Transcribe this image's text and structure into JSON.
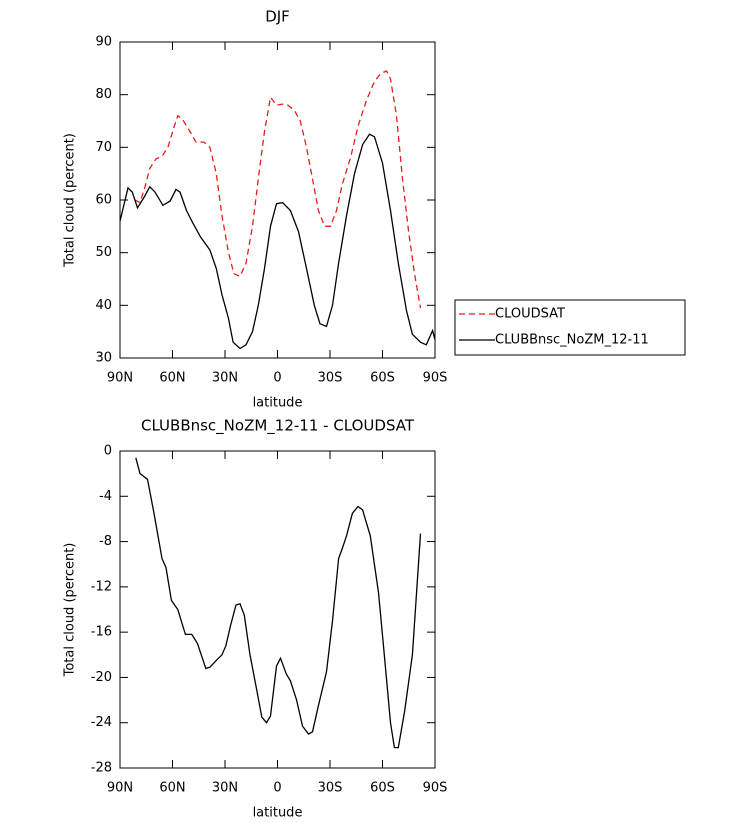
{
  "chart_data": [
    {
      "type": "line",
      "title": "DJF",
      "xlabel": "latitude",
      "ylabel": "Total cloud (percent)",
      "xlim": [
        90,
        -90
      ],
      "xticks": [
        {
          "value": 90,
          "label": "90N"
        },
        {
          "value": 60,
          "label": "60N"
        },
        {
          "value": 30,
          "label": "30N"
        },
        {
          "value": 0,
          "label": "0"
        },
        {
          "value": -30,
          "label": "30S"
        },
        {
          "value": -60,
          "label": "60S"
        },
        {
          "value": -90,
          "label": "90S"
        }
      ],
      "ylim": [
        30,
        90
      ],
      "yticks": [
        30,
        40,
        50,
        60,
        70,
        80,
        90
      ],
      "legend": "right",
      "series": [
        {
          "name": "CLOUDSAT",
          "color": "#e0201b",
          "dash": "dashed",
          "x": [
            81.4,
            78.6,
            75.7,
            73,
            69.4,
            66,
            62.6,
            59,
            57,
            54.6,
            50,
            46.6,
            42,
            38.6,
            35,
            31.7,
            28,
            24.9,
            21.4,
            18,
            14.3,
            11,
            7.4,
            4,
            0.6,
            -2.9,
            -6,
            -9.7,
            -13,
            -16.6,
            -20,
            -23.4,
            -26.9,
            -30.3,
            -33.7,
            -37,
            -41.7,
            -46,
            -50.9,
            -55.4,
            -58.9,
            -62.3,
            -64.6,
            -68,
            -71.4,
            -74.9,
            -78.3,
            -81.7
          ],
          "values": [
            60,
            59.5,
            62.5,
            66,
            67.8,
            68.3,
            70,
            74,
            76,
            75.5,
            73,
            71,
            71,
            70,
            65,
            57,
            50,
            46,
            45.5,
            48,
            55,
            64,
            73,
            79.5,
            78,
            78.2,
            78,
            77,
            75,
            70,
            64,
            58,
            55,
            55,
            58,
            63,
            68,
            74,
            79,
            82.5,
            84,
            84.5,
            83,
            76,
            64,
            54,
            46,
            39.5
          ]
        },
        {
          "name": "CLUBBnsc_NoZM_12-11",
          "color": "#000000",
          "dash": "solid",
          "x": [
            90,
            85.4,
            83,
            80,
            76.3,
            73,
            70,
            65.5,
            61.4,
            58,
            55.7,
            52,
            49,
            44,
            38.6,
            35,
            31.7,
            28,
            25.4,
            21.4,
            18,
            14.3,
            11,
            7.4,
            4,
            0.6,
            -2.9,
            -7.4,
            -12,
            -16.6,
            -21,
            -24.3,
            -28,
            -31.4,
            -34.9,
            -39.4,
            -44,
            -48.6,
            -52.6,
            -55.4,
            -60,
            -64.6,
            -69,
            -73.7,
            -77.1,
            -81.7,
            -85,
            -88.6,
            -90
          ],
          "values": [
            56,
            62.3,
            61.5,
            58.5,
            60.5,
            62.5,
            61.5,
            59,
            59.8,
            62,
            61.5,
            58,
            56,
            53,
            50.5,
            47,
            42,
            37.5,
            33,
            31.8,
            32.5,
            35,
            40,
            47,
            55,
            59.3,
            59.5,
            58,
            54,
            47,
            40,
            36.5,
            36,
            40,
            48,
            57,
            65,
            70.5,
            72.5,
            72,
            67,
            58,
            48,
            39,
            34.5,
            33,
            32.5,
            35.2,
            33.5
          ]
        }
      ]
    },
    {
      "type": "line",
      "title": "CLUBBnsc_NoZM_12-11 - CLOUDSAT",
      "xlabel": "latitude",
      "ylabel": "Total cloud (percent)",
      "xlim": [
        90,
        -90
      ],
      "xticks": [
        {
          "value": 90,
          "label": "90N"
        },
        {
          "value": 60,
          "label": "60N"
        },
        {
          "value": 30,
          "label": "30N"
        },
        {
          "value": 0,
          "label": "0"
        },
        {
          "value": -30,
          "label": "30S"
        },
        {
          "value": -60,
          "label": "60S"
        },
        {
          "value": -90,
          "label": "90S"
        }
      ],
      "ylim": [
        -28,
        0
      ],
      "yticks": [
        -28,
        -24,
        -20,
        -16,
        -12,
        -8,
        -4,
        0
      ],
      "series": [
        {
          "color": "#000000",
          "dash": "solid",
          "x": [
            81,
            78.6,
            74.3,
            70.6,
            66,
            63.7,
            60.6,
            57,
            52.6,
            49,
            45.7,
            41,
            38.6,
            35,
            31.7,
            29.5,
            27,
            23.7,
            21.4,
            19,
            15.7,
            12,
            9,
            6.3,
            4,
            0.6,
            -1.7,
            -5,
            -7.4,
            -10.9,
            -14.3,
            -17.7,
            -20,
            -23.4,
            -28,
            -31.4,
            -34.9,
            -37,
            -39.4,
            -42.8,
            -46,
            -48.6,
            -53,
            -57.7,
            -61,
            -64.6,
            -66.8,
            -69,
            -72.6,
            -77.1,
            -81.7
          ],
          "values": [
            -0.6,
            -2,
            -2.5,
            -5.5,
            -9.5,
            -10.3,
            -13.2,
            -14,
            -16.2,
            -16.2,
            -17,
            -19.2,
            -19.1,
            -18.5,
            -18,
            -17.2,
            -15.5,
            -13.6,
            -13.5,
            -14.5,
            -18,
            -21,
            -23.5,
            -24,
            -23.4,
            -19,
            -18.3,
            -19.7,
            -20.3,
            -22,
            -24.3,
            -25,
            -24.8,
            -22.5,
            -19.5,
            -15,
            -9.5,
            -8.6,
            -7.5,
            -5.5,
            -4.9,
            -5.2,
            -7.5,
            -12.5,
            -18,
            -24,
            -26.2,
            -26.2,
            -23,
            -18,
            -7.3
          ]
        }
      ]
    }
  ]
}
